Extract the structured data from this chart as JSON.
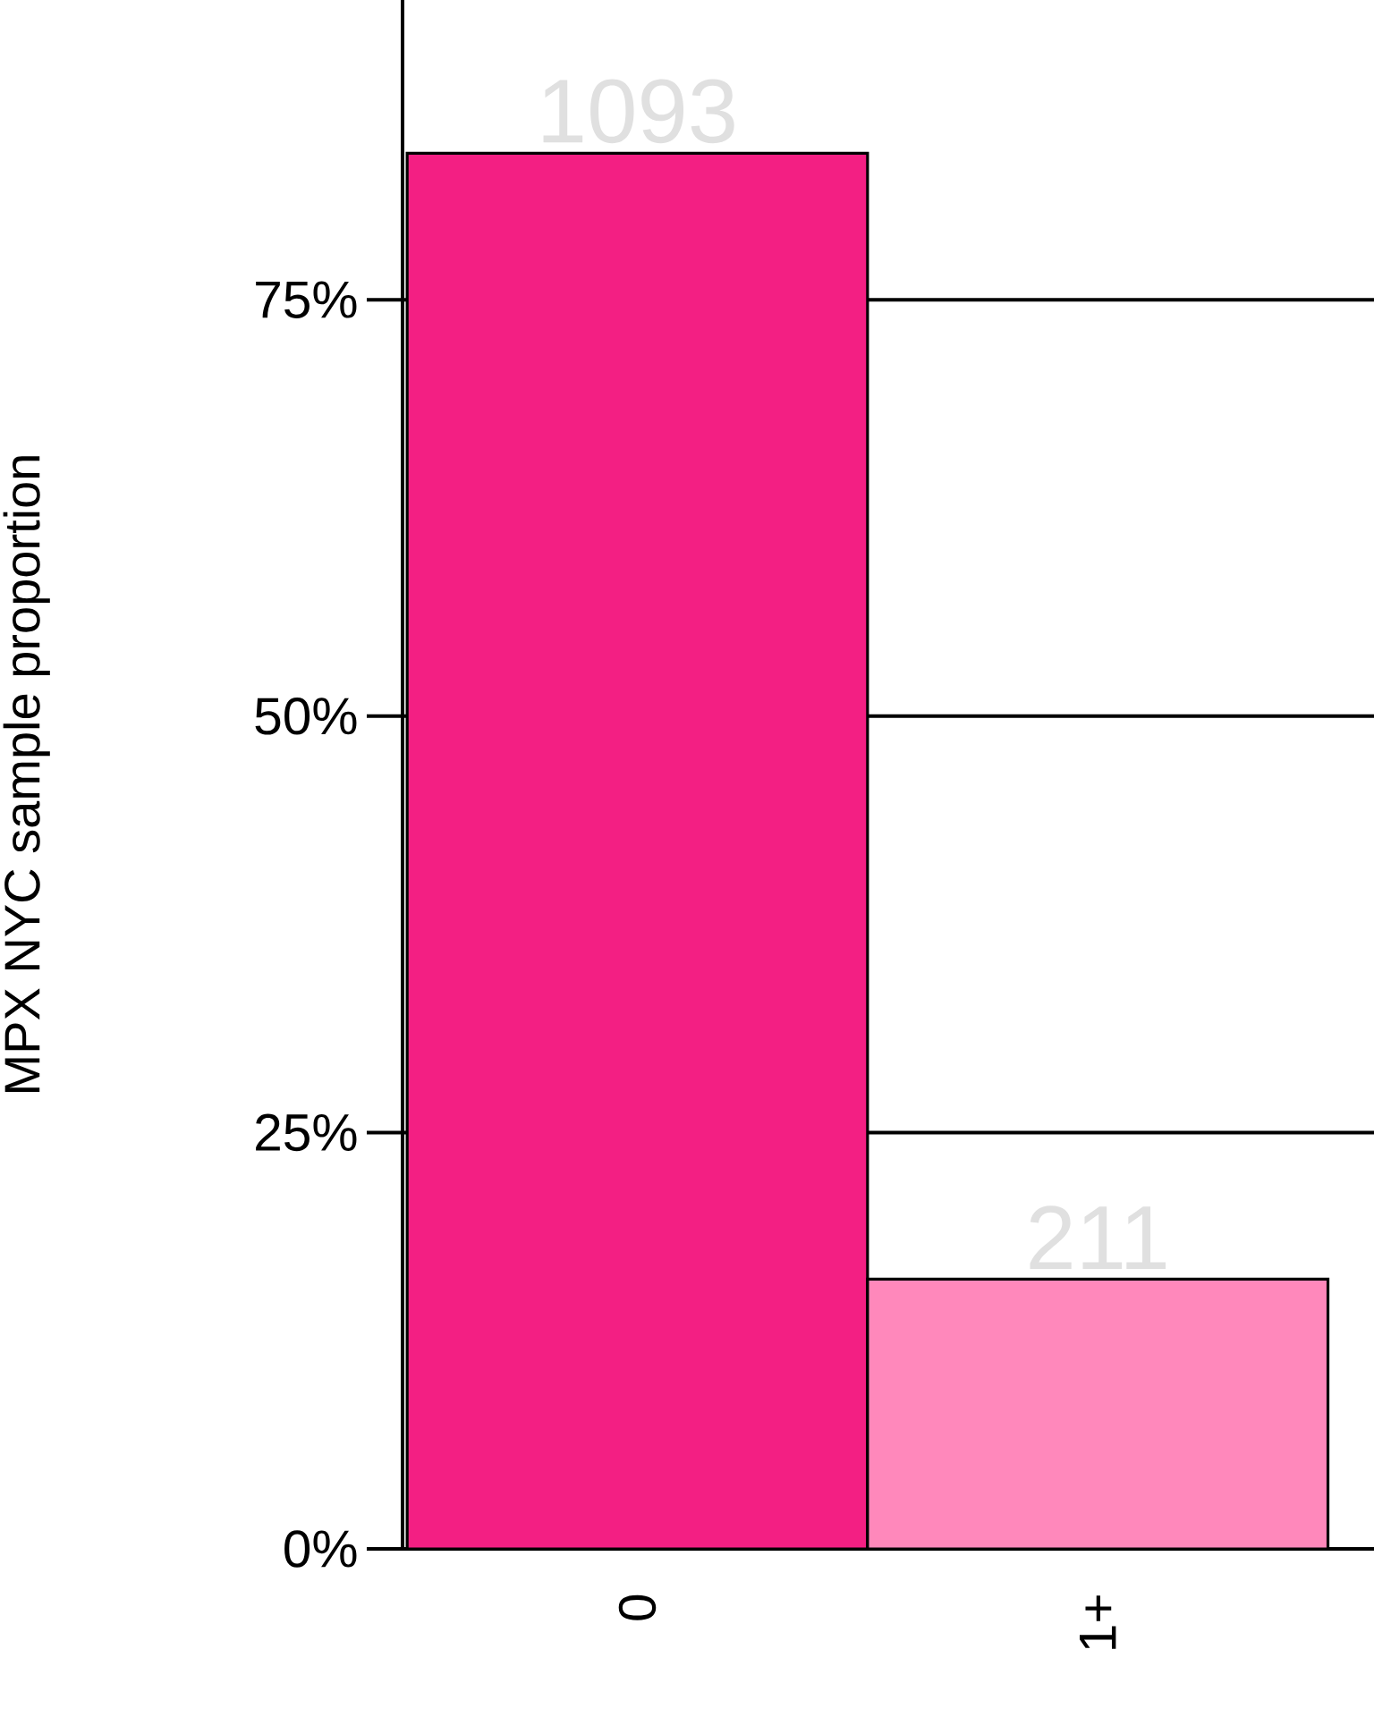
{
  "chart_data": {
    "type": "bar",
    "ylabel": "MPX NYC sample proportion",
    "categories": [
      "0",
      "1+"
    ],
    "values": [
      83.8,
      16.2
    ],
    "colors": [
      "#f31f83",
      "#ff88bb"
    ],
    "annotations": [
      {
        "text": "1093",
        "x": "0",
        "y": 83.8
      },
      {
        "text": "211",
        "x": "1+",
        "y": 16.2
      }
    ],
    "ylim": [
      0,
      93
    ],
    "yticks": [
      {
        "value": 0,
        "label": "0%"
      },
      {
        "value": 25,
        "label": "25%"
      },
      {
        "value": 50,
        "label": "50%"
      },
      {
        "value": 75,
        "label": "75%"
      }
    ],
    "grid": "y"
  }
}
